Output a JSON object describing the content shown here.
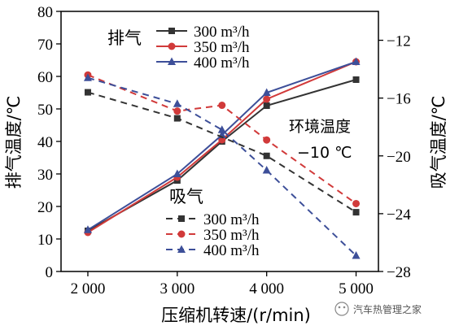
{
  "chart_data": {
    "type": "line",
    "xlabel": "压缩机转速/(r/min)",
    "ylabel_left": "排气温度/℃",
    "ylabel_right": "吸气温度/℃",
    "xlim": [
      1700,
      5250
    ],
    "ylim_left": [
      0,
      80
    ],
    "ylim_right": [
      -28,
      -10
    ],
    "x_ticks": [
      2000,
      3000,
      4000,
      5000
    ],
    "x_tick_labels": [
      "2 000",
      "3 000",
      "4 000",
      "5 000"
    ],
    "y_left_ticks": [
      0,
      10,
      20,
      30,
      40,
      50,
      60,
      70,
      80
    ],
    "y_left_tick_labels": [
      "0",
      "10",
      "20",
      "30",
      "40",
      "50",
      "60",
      "70",
      "80"
    ],
    "y_right_ticks": [
      -12,
      -16,
      -20,
      -24,
      -28
    ],
    "y_right_tick_labels": [
      "−12",
      "−16",
      "−20",
      "−24",
      "−28"
    ],
    "legend_groups": [
      {
        "title": "排气",
        "position": "top-left"
      },
      {
        "title": "吸气",
        "position": "lower-middle"
      }
    ],
    "annotation": {
      "line1": "环境温度",
      "line2": "−10 ℃"
    },
    "watermark": "汽车热管理之家",
    "series": [
      {
        "name": "300 m³/h",
        "group": "discharge",
        "axis": "left",
        "style": "solid",
        "marker": "square",
        "color": "#333333",
        "x": [
          2000,
          3000,
          3500,
          4000,
          5000
        ],
        "y": [
          12.5,
          28.0,
          40.0,
          51.0,
          59.0
        ]
      },
      {
        "name": "350 m³/h",
        "group": "discharge",
        "axis": "left",
        "style": "solid",
        "marker": "circle",
        "color": "#d13a3a",
        "x": [
          2000,
          3000,
          3500,
          4000,
          5000
        ],
        "y": [
          12.0,
          29.0,
          40.5,
          53.0,
          64.5
        ]
      },
      {
        "name": "400 m³/h",
        "group": "discharge",
        "axis": "left",
        "style": "solid",
        "marker": "triangle",
        "color": "#3d4f99",
        "x": [
          2000,
          3000,
          3500,
          4000,
          5000
        ],
        "y": [
          12.8,
          30.0,
          42.0,
          55.0,
          64.5
        ]
      },
      {
        "name": "300 m³/h",
        "group": "suction",
        "axis": "right",
        "style": "dashed",
        "marker": "square",
        "color": "#333333",
        "x": [
          2000,
          3000,
          4000,
          5000
        ],
        "y": [
          -15.6,
          -17.4,
          -20.0,
          -23.9
        ]
      },
      {
        "name": "350 m³/h",
        "group": "suction",
        "axis": "right",
        "style": "dashed",
        "marker": "circle",
        "color": "#d13a3a",
        "x": [
          2000,
          3000,
          3500,
          4000,
          5000
        ],
        "y": [
          -14.4,
          -16.9,
          -16.5,
          -18.9,
          -23.3
        ]
      },
      {
        "name": "400 m³/h",
        "group": "suction",
        "axis": "right",
        "style": "dashed",
        "marker": "triangle",
        "color": "#3d4f99",
        "x": [
          2000,
          3000,
          3500,
          4000,
          5000
        ],
        "y": [
          -14.6,
          -16.4,
          -18.2,
          -21.0,
          -26.9
        ]
      }
    ]
  }
}
